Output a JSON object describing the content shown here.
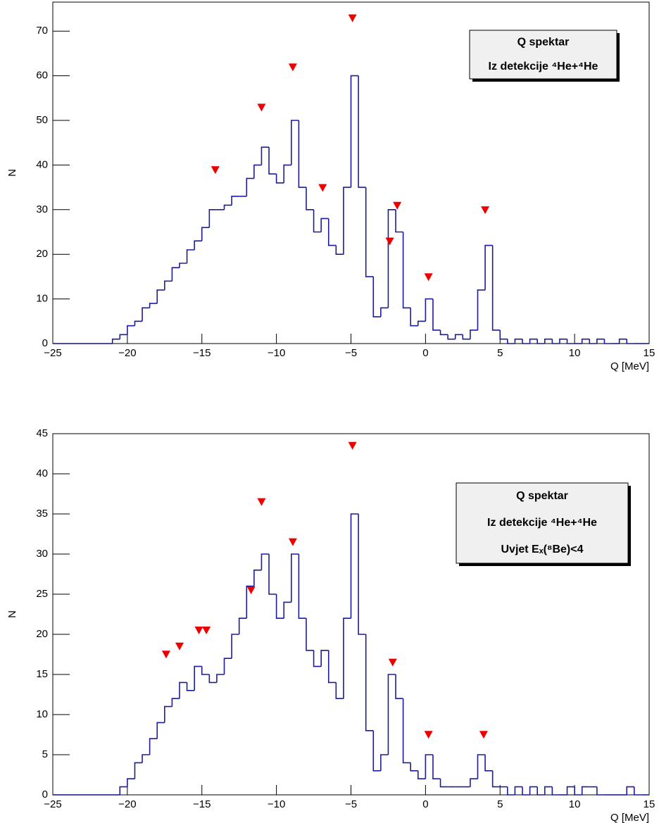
{
  "chart_data": [
    {
      "type": "histogram",
      "color": "#1c1c9a",
      "marker_color": "#ee0000",
      "xlabel": "Q [MeV]",
      "ylabel": "N",
      "legend": [
        "Q spektar",
        "Iz detekcije  ⁴He+⁴He"
      ],
      "xlim": [
        -25,
        15
      ],
      "ylim": [
        0,
        76.5
      ],
      "xticks": [
        {
          "value": -25,
          "label": "−25"
        },
        {
          "value": -20,
          "label": "−20"
        },
        {
          "value": -15,
          "label": "−15"
        },
        {
          "value": -10,
          "label": "−10"
        },
        {
          "value": -5,
          "label": "−5"
        },
        0,
        5,
        10,
        15
      ],
      "yticks": [
        0,
        10,
        20,
        30,
        40,
        50,
        60,
        70
      ],
      "bins": [
        -25,
        -24.5,
        -24,
        -23.5,
        -23,
        -22.5,
        -22,
        -21.5,
        -21,
        -20.5,
        -20,
        -19.5,
        -19,
        -18.5,
        -18,
        -17.5,
        -17,
        -16.5,
        -16,
        -15.5,
        -15,
        -14.5,
        -14,
        -13.5,
        -13,
        -12.5,
        -12,
        -11.5,
        -11,
        -10.5,
        -10,
        -9.5,
        -9,
        -8.5,
        -8,
        -7.5,
        -7,
        -6.5,
        -6,
        -5.5,
        -5,
        -4.5,
        -4,
        -3.5,
        -3,
        -2.5,
        -2,
        -1.5,
        -1,
        -0.5,
        0,
        0.5,
        1,
        1.5,
        2,
        2.5,
        3,
        3.5,
        4,
        4.5,
        5,
        5.5,
        6,
        6.5,
        7,
        7.5,
        8,
        8.5,
        9,
        9.5,
        10,
        10.5,
        11,
        11.5,
        12,
        12.5,
        13,
        13.5,
        14,
        14.5,
        15
      ],
      "values": [
        0,
        0,
        0,
        0,
        0,
        0,
        0,
        0,
        1,
        2,
        4,
        5,
        8,
        9,
        12,
        14,
        17,
        18,
        21,
        23,
        26,
        30,
        30,
        31,
        33,
        33,
        37,
        40,
        44,
        38,
        36,
        40,
        50,
        35,
        30,
        25,
        28,
        22,
        20,
        35,
        60,
        35,
        15,
        6,
        8,
        30,
        25,
        8,
        4,
        5,
        10,
        3,
        2,
        1,
        2,
        1,
        3,
        12,
        22,
        3,
        1,
        0,
        1,
        0,
        1,
        0,
        1,
        0,
        1,
        0,
        0,
        1,
        0,
        1,
        0,
        0,
        1,
        0,
        0,
        0
      ],
      "peaks": {
        "x": [
          -14.1,
          -11,
          -8.9,
          -6.9,
          -4.9,
          -2.4,
          -1.9,
          0.2,
          4
        ],
        "y": [
          38,
          52,
          61,
          34,
          72,
          22,
          30,
          14,
          29
        ]
      }
    },
    {
      "type": "histogram",
      "color": "#1c1c9a",
      "marker_color": "#ee0000",
      "xlabel": "Q [MeV]",
      "ylabel": "N",
      "legend": [
        "Q spektar",
        "Iz detekcije  ⁴He+⁴He",
        "Uvjet Eₓ(⁸Be)<4"
      ],
      "xlim": [
        -25,
        15
      ],
      "ylim": [
        0,
        45
      ],
      "xticks": [
        {
          "value": -25,
          "label": "−25"
        },
        {
          "value": -20,
          "label": "−20"
        },
        {
          "value": -15,
          "label": "−15"
        },
        {
          "value": -10,
          "label": "−10"
        },
        {
          "value": -5,
          "label": "−5"
        },
        0,
        5,
        10,
        15
      ],
      "yticks": [
        0,
        5,
        10,
        15,
        20,
        25,
        30,
        35,
        40,
        45
      ],
      "bins": [
        -25,
        -24.5,
        -24,
        -23.5,
        -23,
        -22.5,
        -22,
        -21.5,
        -21,
        -20.5,
        -20,
        -19.5,
        -19,
        -18.5,
        -18,
        -17.5,
        -17,
        -16.5,
        -16,
        -15.5,
        -15,
        -14.5,
        -14,
        -13.5,
        -13,
        -12.5,
        -12,
        -11.5,
        -11,
        -10.5,
        -10,
        -9.5,
        -9,
        -8.5,
        -8,
        -7.5,
        -7,
        -6.5,
        -6,
        -5.5,
        -5,
        -4.5,
        -4,
        -3.5,
        -3,
        -2.5,
        -2,
        -1.5,
        -1,
        -0.5,
        0,
        0.5,
        1,
        1.5,
        2,
        2.5,
        3,
        3.5,
        4,
        4.5,
        5,
        5.5,
        6,
        6.5,
        7,
        7.5,
        8,
        8.5,
        9,
        9.5,
        10,
        10.5,
        11,
        11.5,
        12,
        12.5,
        13,
        13.5,
        14,
        14.5,
        15
      ],
      "values": [
        0,
        0,
        0,
        0,
        0,
        0,
        0,
        0,
        0,
        1,
        2,
        4,
        5,
        7,
        9,
        11,
        12,
        14,
        13,
        16,
        15,
        14,
        15,
        17,
        20,
        22,
        26,
        28,
        30,
        25,
        22,
        24,
        30,
        22,
        18,
        16,
        18,
        14,
        12,
        22,
        35,
        20,
        8,
        3,
        5,
        15,
        12,
        4,
        3,
        2,
        5,
        2,
        1,
        1,
        1,
        1,
        2,
        5,
        3,
        1,
        1,
        0,
        1,
        0,
        1,
        0,
        1,
        0,
        0,
        1,
        0,
        1,
        1,
        0,
        0,
        0,
        0,
        1,
        0,
        0
      ],
      "peaks": {
        "x": [
          -17.4,
          -16.5,
          -15.2,
          -14.7,
          -11.7,
          -11,
          -8.9,
          -4.9,
          -2.2,
          0.2,
          3.9
        ],
        "y": [
          17,
          18,
          20,
          20,
          25,
          36,
          31,
          43,
          16,
          7,
          7
        ]
      }
    }
  ]
}
